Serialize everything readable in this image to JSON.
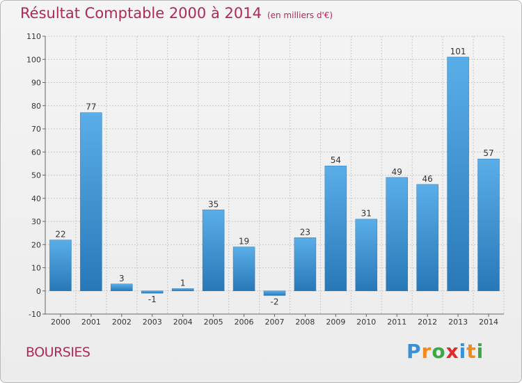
{
  "title": "Résultat Comptable 2000 à 2014",
  "subtitle": "(en milliers d'€)",
  "commune": "BOURSIES",
  "logo": {
    "letters": [
      "P",
      "r",
      "o",
      "x",
      "i",
      "t",
      "i"
    ],
    "colors": [
      "#3a8fd6",
      "#f08a1c",
      "#3aa845",
      "#e02a2a",
      "#3a8fd6",
      "#f08a1c",
      "#3aa845"
    ]
  },
  "chart_data": {
    "type": "bar",
    "title": "Résultat Comptable 2000 à 2014",
    "subtitle": "(en milliers d'€)",
    "xlabel": "",
    "ylabel": "",
    "categories": [
      "2000",
      "2001",
      "2002",
      "2003",
      "2004",
      "2005",
      "2006",
      "2007",
      "2008",
      "2009",
      "2010",
      "2011",
      "2012",
      "2013",
      "2014"
    ],
    "values": [
      22,
      77,
      3,
      -1,
      1,
      35,
      19,
      -2,
      23,
      54,
      31,
      49,
      46,
      101,
      57
    ],
    "ylim": [
      -10,
      110
    ],
    "yticks": [
      -10,
      0,
      10,
      20,
      30,
      40,
      50,
      60,
      70,
      80,
      90,
      100,
      110
    ],
    "grid": true,
    "colors": {
      "bar_light": "#5aaee8",
      "bar_dark": "#2878b8"
    }
  }
}
